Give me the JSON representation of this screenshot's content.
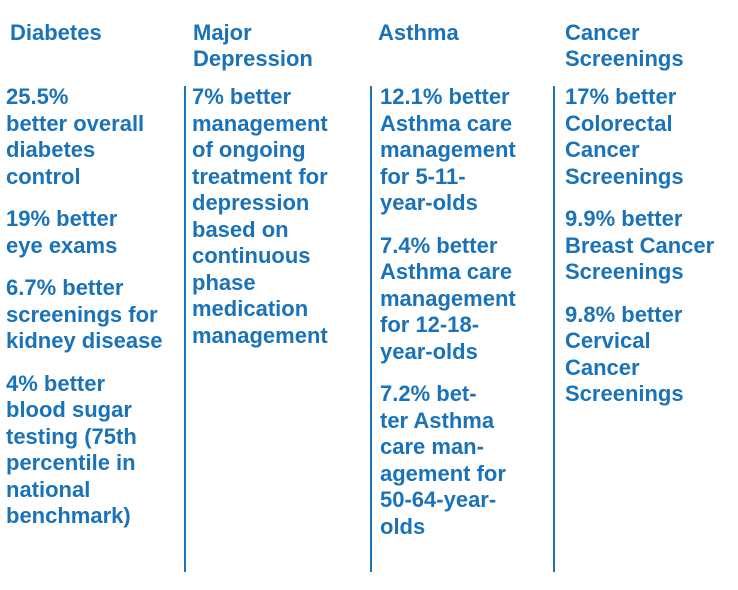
{
  "colors": {
    "text": "#1a73b8",
    "divider": "#1a73b8",
    "background": "#ffffff"
  },
  "columns": [
    {
      "heading": "Diabetes",
      "items": [
        "25.5%\nbetter overall\ndiabetes\ncontrol",
        "19% better\neye exams",
        "6.7% better\nscreenings for\nkidney disease",
        "4% better\nblood sugar\ntesting (75th\npercentile in\nnational\nbenchmark)"
      ]
    },
    {
      "heading": "Major\nDepression",
      "items": [
        "7% better\nmanagement\nof ongoing\ntreatment for\ndepression\nbased on\ncontinuous\nphase\nmedication\nmanagement"
      ]
    },
    {
      "heading": "Asthma",
      "items": [
        "12.1% better\nAsthma care\nmanagement\nfor 5-11-\nyear-olds",
        "7.4% better\nAsthma care\nmanagement\nfor 12-18-\nyear-olds",
        "7.2% bet-\nter Asthma\ncare man-\nagement for\n50-64-year-\nolds"
      ]
    },
    {
      "heading": "Cancer\nScreenings",
      "items": [
        "17% better\nColorectal\nCancer\nScreenings",
        "9.9% better\nBreast Cancer\nScreenings",
        "9.8% better\nCervical\nCancer\nScreenings"
      ]
    }
  ]
}
